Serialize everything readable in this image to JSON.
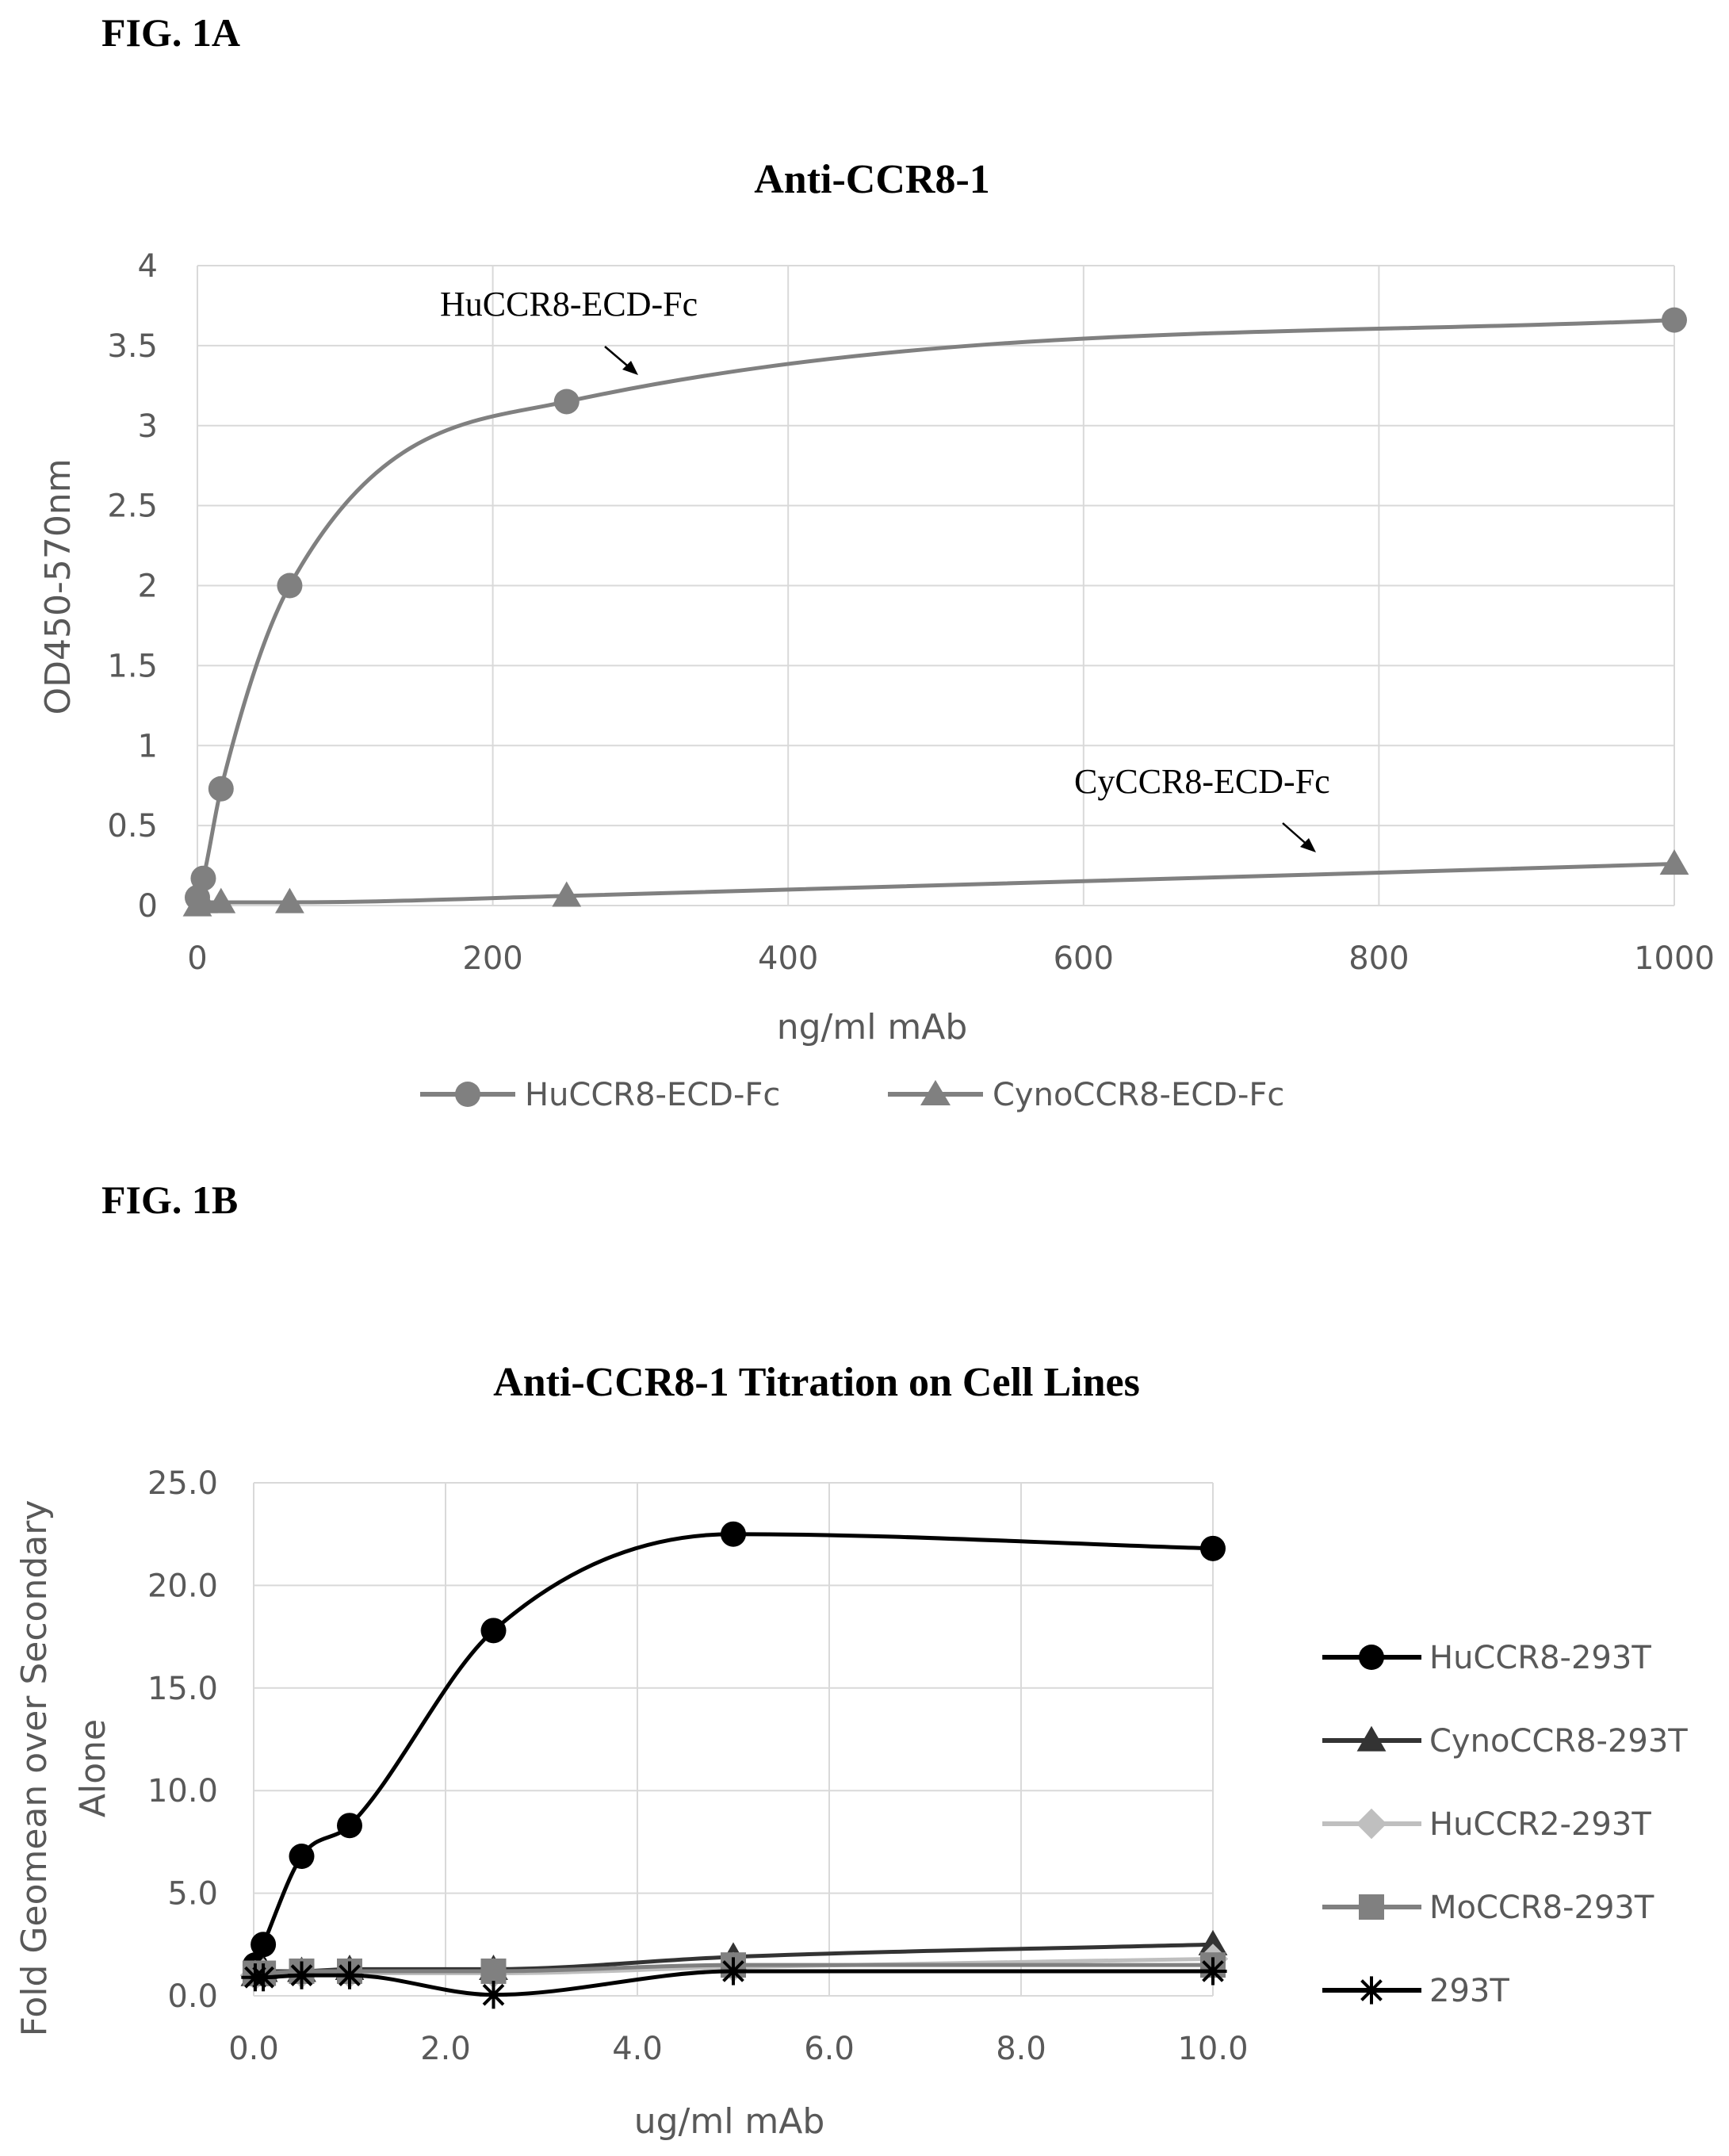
{
  "figures": [
    {
      "label": "FIG. 1A"
    },
    {
      "label": "FIG. 1B"
    }
  ],
  "chart_data": [
    {
      "type": "line",
      "title": "Anti-CCR8-1",
      "xlabel": "ng/ml mAb",
      "ylabel": "OD450-570nm",
      "xlim": [
        0,
        1000
      ],
      "ylim": [
        0,
        4
      ],
      "xticks": [
        0,
        200,
        400,
        600,
        800,
        1000
      ],
      "yticks": [
        0,
        0.5,
        1,
        1.5,
        2,
        2.5,
        3,
        3.5,
        4
      ],
      "grid": true,
      "legend": "bottom",
      "series": [
        {
          "name": "HuCCR8-ECD-Fc",
          "marker": "circle",
          "color": "#808080",
          "x": [
            0,
            4,
            16,
            62.5,
            250,
            1000
          ],
          "y": [
            0.05,
            0.17,
            0.73,
            2.0,
            3.15,
            3.66
          ]
        },
        {
          "name": "CynoCCR8-ECD-Fc",
          "marker": "triangle",
          "color": "#808080",
          "x": [
            0,
            4,
            16,
            62.5,
            250,
            1000
          ],
          "y": [
            0.0,
            0.02,
            0.02,
            0.02,
            0.06,
            0.26
          ]
        }
      ],
      "annotations": [
        {
          "text": "HuCCR8-ECD-Fc"
        },
        {
          "text": "CyCCR8-ECD-Fc"
        }
      ]
    },
    {
      "type": "line",
      "title": "Anti-CCR8-1 Titration on Cell Lines",
      "xlabel": "ug/ml mAb",
      "ylabel": "Fold Geomean over Secondary Alone",
      "ylabel_lines": [
        "Fold Geomean over Secondary",
        "Alone"
      ],
      "xlim": [
        0,
        10
      ],
      "ylim": [
        0,
        25
      ],
      "xticks": [
        "0.0",
        "2.0",
        "4.0",
        "6.0",
        "8.0",
        "10.0"
      ],
      "yticks": [
        "0.0",
        "5.0",
        "10.0",
        "15.0",
        "20.0",
        "25.0"
      ],
      "grid": true,
      "legend": "right",
      "series": [
        {
          "name": "HuCCR8-293T",
          "marker": "circle",
          "color": "#000000",
          "x": [
            0.016,
            0.1,
            0.5,
            1.0,
            2.5,
            5.0,
            10.0
          ],
          "y": [
            1.5,
            2.5,
            6.8,
            8.3,
            17.8,
            22.5,
            21.8
          ]
        },
        {
          "name": "CynoCCR8-293T",
          "marker": "triangle",
          "color": "#333333",
          "x": [
            0.016,
            0.1,
            0.5,
            1.0,
            2.5,
            5.0,
            10.0
          ],
          "y": [
            1.0,
            1.2,
            1.2,
            1.3,
            1.3,
            1.9,
            2.5
          ]
        },
        {
          "name": "HuCCR2-293T",
          "marker": "diamond",
          "color": "#bfbfbf",
          "x": [
            0.016,
            0.1,
            0.5,
            1.0,
            2.5,
            5.0,
            10.0
          ],
          "y": [
            1.0,
            1.1,
            1.1,
            1.1,
            1.1,
            1.4,
            1.8
          ]
        },
        {
          "name": "MoCCR8-293T",
          "marker": "square",
          "color": "#808080",
          "x": [
            0.016,
            0.1,
            0.5,
            1.0,
            2.5,
            5.0,
            10.0
          ],
          "y": [
            1.1,
            1.1,
            1.2,
            1.2,
            1.2,
            1.5,
            1.5
          ]
        },
        {
          "name": "293T",
          "marker": "star",
          "color": "#000000",
          "x": [
            0.016,
            0.1,
            0.5,
            1.0,
            2.5,
            5.0,
            10.0
          ],
          "y": [
            0.9,
            0.9,
            1.0,
            1.0,
            0.05,
            1.2,
            1.2
          ]
        }
      ]
    }
  ]
}
